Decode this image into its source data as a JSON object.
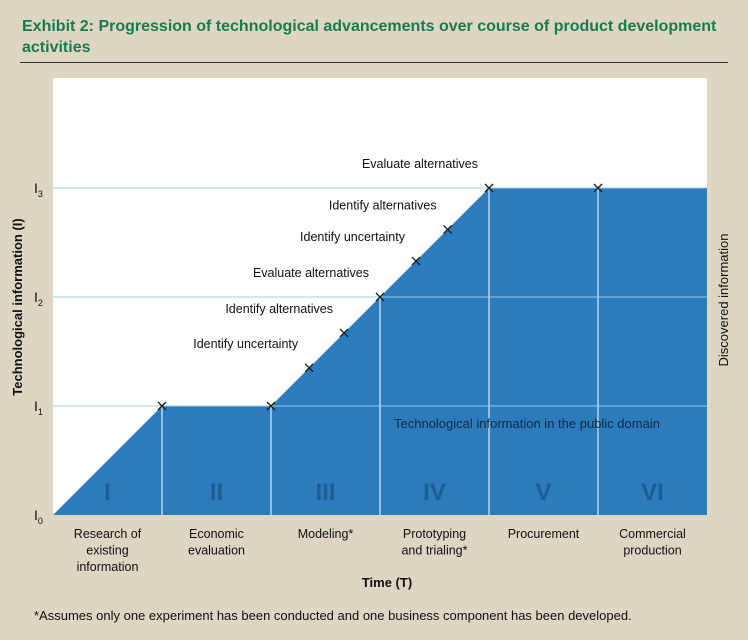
{
  "title": "Exhibit 2: Progression of technological advancements over course of product development activities",
  "y_axis_label": "Technological information (I)",
  "x_axis_label": "Time (T)",
  "right_label": "Discovered information",
  "public_domain_label": "Technological information in the public domain",
  "y_levels": [
    {
      "sym": "I",
      "sub": "0",
      "value": 0
    },
    {
      "sym": "I",
      "sub": "1",
      "value": 1
    },
    {
      "sym": "I",
      "sub": "2",
      "value": 2
    },
    {
      "sym": "I",
      "sub": "3",
      "value": 3
    }
  ],
  "phases": [
    {
      "numeral": "I",
      "label": [
        "Research of",
        "existing",
        "information"
      ]
    },
    {
      "numeral": "II",
      "label": [
        "Economic",
        "evaluation"
      ]
    },
    {
      "numeral": "III",
      "label": [
        "Modeling*"
      ]
    },
    {
      "numeral": "IV",
      "label": [
        "Prototyping",
        "and trialing*"
      ]
    },
    {
      "numeral": "V",
      "label": [
        "Procurement"
      ]
    },
    {
      "numeral": "VI",
      "label": [
        "Commercial",
        "production"
      ]
    }
  ],
  "curve": [
    [
      0,
      0
    ],
    [
      1,
      1
    ],
    [
      2,
      1
    ],
    [
      3,
      2
    ],
    [
      4,
      3
    ],
    [
      5,
      3
    ],
    [
      6,
      3
    ]
  ],
  "markers": [
    {
      "t": 1,
      "i": 1
    },
    {
      "t": 2,
      "i": 1
    },
    {
      "t": 2.35,
      "i": 1.35,
      "label": "Identify uncertainty"
    },
    {
      "t": 2.67,
      "i": 1.67,
      "label": "Identify alternatives"
    },
    {
      "t": 3,
      "i": 2,
      "label": "Evaluate alternatives"
    },
    {
      "t": 3.33,
      "i": 2.33,
      "label": "Identify uncertainty"
    },
    {
      "t": 3.62,
      "i": 2.62,
      "label": "Identify alternatives"
    },
    {
      "t": 4,
      "i": 3,
      "label": "Evaluate alternatives"
    },
    {
      "t": 5,
      "i": 3
    }
  ],
  "footnote": "*Assumes only one experiment has been conducted and one business component has been developed.",
  "colors": {
    "background": "#dcd6c2",
    "plot_bg": "#ffffff",
    "fill": "#2b7bbd",
    "grid": "#9fd3e0",
    "title": "#1a7a52",
    "phase_numeral": "#1d5e93"
  }
}
